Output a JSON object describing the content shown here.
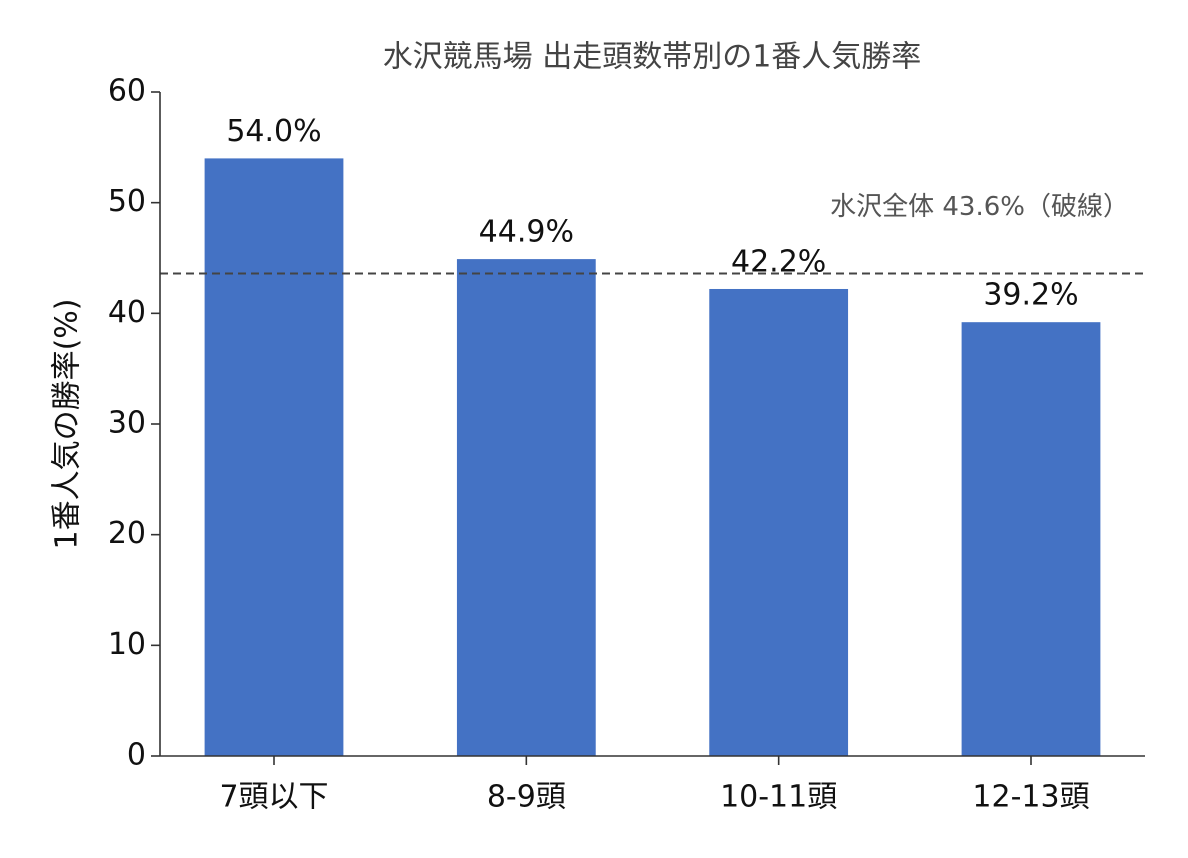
{
  "chart_data": {
    "type": "bar",
    "title": "水沢競馬場 出走頭数帯別の1番人気勝率",
    "ylabel": "1番人気の勝率(%)",
    "categories": [
      "7頭以下",
      "8-9頭",
      "10-11頭",
      "12-13頭"
    ],
    "values": [
      54.0,
      44.9,
      42.2,
      39.2
    ],
    "value_labels": [
      "54.0%",
      "44.9%",
      "42.2%",
      "39.2%"
    ],
    "color": "#4472c4",
    "ylim": [
      0,
      60
    ],
    "yticks": [
      0,
      10,
      20,
      30,
      40,
      50,
      60
    ],
    "reference_line": {
      "value": 43.6,
      "label": "水沢全体 43.6%（破線）"
    }
  }
}
